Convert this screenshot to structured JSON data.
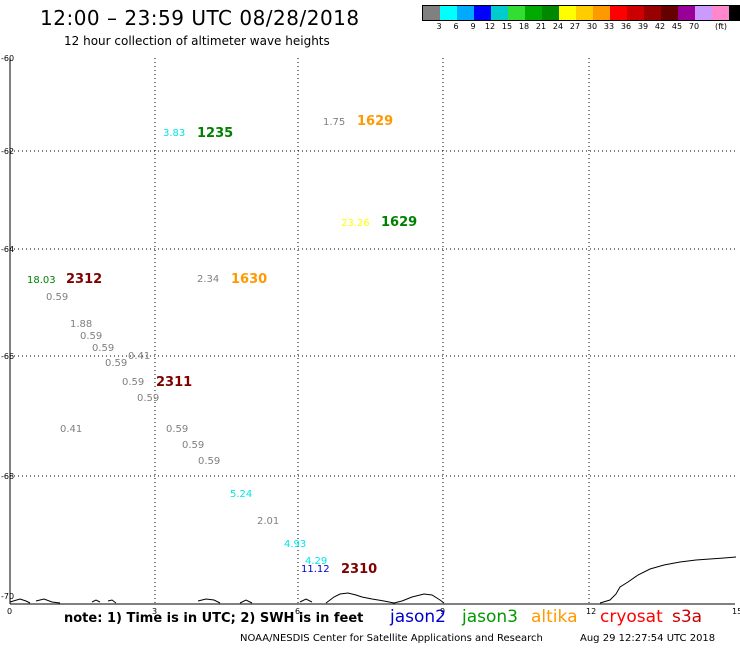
{
  "header": {
    "title": "12:00 – 23:59 UTC 08/28/2018",
    "subtitle": "12 hour collection of altimeter wave heights"
  },
  "legend": {
    "colors": [
      "#808080",
      "#00ffff",
      "#00aaff",
      "#0000ff",
      "#00cccc",
      "#33dd33",
      "#00aa00",
      "#008800",
      "#ffff00",
      "#ffcc00",
      "#ff9900",
      "#ff0000",
      "#cc0000",
      "#990000",
      "#660000",
      "#990099",
      "#cc99ff",
      "#ff88cc",
      "#000000"
    ],
    "labels": [
      "3",
      "6",
      "9",
      "12",
      "15",
      "18",
      "21",
      "24",
      "27",
      "30",
      "33",
      "36",
      "39",
      "42",
      "45",
      "70",
      "(ft)"
    ]
  },
  "map": {
    "lat_labels": [
      "-60",
      "-62",
      "-64",
      "-66",
      "-68",
      "-70"
    ],
    "lon_labels": [
      "0",
      "3",
      "6",
      "9",
      "12",
      "15"
    ],
    "observations": [
      {
        "text": "3.83",
        "color": "#00e5e5"
      },
      {
        "text": "1235",
        "color": "#008000",
        "bold": true
      },
      {
        "text": "1.75",
        "color": "#808080"
      },
      {
        "text": "1629",
        "color": "#ff9900",
        "bold": true
      },
      {
        "text": "23.26",
        "color": "#ffff00"
      },
      {
        "text": "1629",
        "color": "#008000",
        "bold": true
      },
      {
        "text": "18.03",
        "color": "#008000"
      },
      {
        "text": "2312",
        "color": "#800000",
        "bold": true
      },
      {
        "text": "2.34",
        "color": "#808080"
      },
      {
        "text": "1630",
        "color": "#ff9900",
        "bold": true
      },
      {
        "text": "0.59",
        "color": "#808080"
      },
      {
        "text": "1.88",
        "color": "#808080"
      },
      {
        "text": "0.59",
        "color": "#808080"
      },
      {
        "text": "0.59",
        "color": "#808080"
      },
      {
        "text": "0.41",
        "color": "#808080"
      },
      {
        "text": "0.59",
        "color": "#808080"
      },
      {
        "text": "0.59",
        "color": "#808080"
      },
      {
        "text": "2311",
        "color": "#800000",
        "bold": true
      },
      {
        "text": "0.59",
        "color": "#808080"
      },
      {
        "text": "0.41",
        "color": "#808080"
      },
      {
        "text": "0.59",
        "color": "#808080"
      },
      {
        "text": "0.59",
        "color": "#808080"
      },
      {
        "text": "0.59",
        "color": "#808080"
      },
      {
        "text": "5.24",
        "color": "#00e5e5"
      },
      {
        "text": "2.01",
        "color": "#808080"
      },
      {
        "text": "4.93",
        "color": "#00e5e5"
      },
      {
        "text": "4.29",
        "color": "#00e5e5"
      },
      {
        "text": "11.12",
        "color": "#0000cc"
      },
      {
        "text": "2310",
        "color": "#800000",
        "bold": true
      }
    ]
  },
  "footer": {
    "note": "note:  1) Time is in UTC;  2) SWH is in feet",
    "satellites": [
      {
        "name": "jason2",
        "color": "#0000cc"
      },
      {
        "name": "jason3",
        "color": "#009900"
      },
      {
        "name": "altika",
        "color": "#ff9900"
      },
      {
        "name": "cryosat",
        "color": "#ff0000"
      },
      {
        "name": "s3a",
        "color": "#cc0000"
      }
    ],
    "credit": "NOAA/NESDIS Center for Satellite Applications and Research",
    "timestamp": "Aug 29 12:27:54 UTC 2018"
  }
}
